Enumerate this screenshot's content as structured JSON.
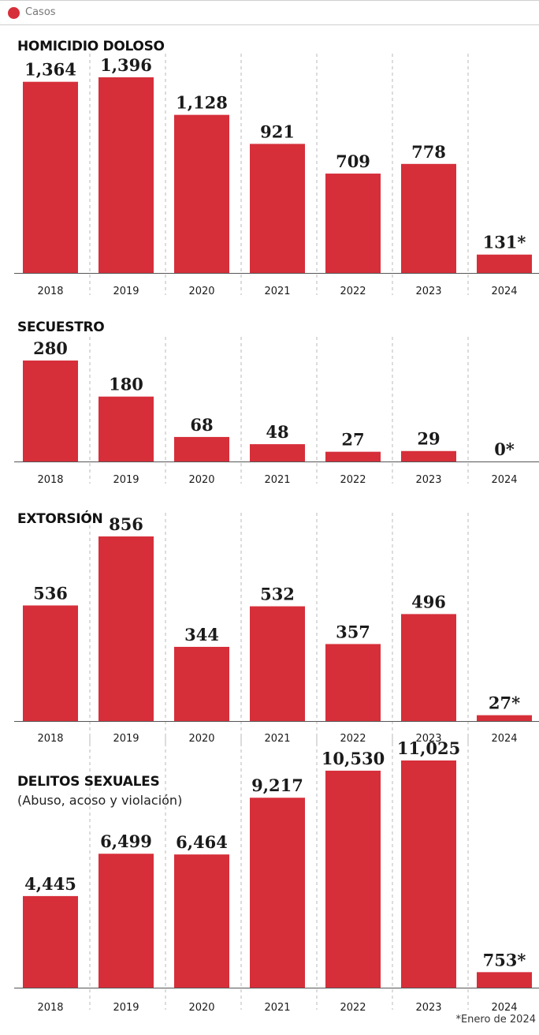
{
  "legend": {
    "label": "Casos",
    "color": "#d62f3a"
  },
  "footnote": "*Enero de 2024",
  "chart_data": [
    {
      "type": "bar",
      "title": "HOMICIDIO DOLOSO",
      "categories": [
        "2018",
        "2019",
        "2020",
        "2021",
        "2022",
        "2023",
        "2024"
      ],
      "values": [
        1364,
        1396,
        1128,
        921,
        709,
        778,
        131
      ],
      "value_labels": [
        "1,364",
        "1,396",
        "1,128",
        "921",
        "709",
        "778",
        "131*"
      ],
      "bar_color": "#d62f3a",
      "grid": "vertical dashed"
    },
    {
      "type": "bar",
      "title": "SECUESTRO",
      "categories": [
        "2018",
        "2019",
        "2020",
        "2021",
        "2022",
        "2023",
        "2024"
      ],
      "values": [
        280,
        180,
        68,
        48,
        27,
        29,
        0
      ],
      "value_labels": [
        "280",
        "180",
        "68",
        "48",
        "27",
        "29",
        "0*"
      ],
      "bar_color": "#d62f3a",
      "grid": "vertical dashed"
    },
    {
      "type": "bar",
      "title": "EXTORSIÓN",
      "categories": [
        "2018",
        "2019",
        "2020",
        "2021",
        "2022",
        "2023",
        "2024"
      ],
      "values": [
        536,
        856,
        344,
        532,
        357,
        496,
        27
      ],
      "value_labels": [
        "536",
        "856",
        "344",
        "532",
        "357",
        "496",
        "27*"
      ],
      "bar_color": "#d62f3a",
      "grid": "vertical dashed"
    },
    {
      "type": "bar",
      "title": "DELITOS SEXUALES",
      "subtitle": "(Abuso, acoso y violación)",
      "categories": [
        "2018",
        "2019",
        "2020",
        "2021",
        "2022",
        "2023",
        "2024"
      ],
      "values": [
        4445,
        6499,
        6464,
        9217,
        10530,
        11025,
        753
      ],
      "value_labels": [
        "4,445",
        "6,499",
        "6,464",
        "9,217",
        "10,530",
        "11,025",
        "753*"
      ],
      "bar_color": "#d62f3a",
      "grid": "vertical dashed"
    }
  ]
}
